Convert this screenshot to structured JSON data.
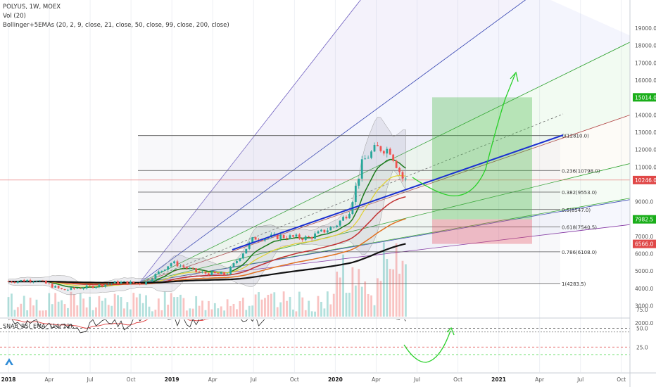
{
  "legend": {
    "symbol": "POLYUS, 1W, MOEX",
    "vol": "Vol (20)",
    "indicator": "Bollinger+5EMAs (20, 2, 9, close, 21, close, 50, close, 99, close, 200, close)"
  },
  "rsi_legend": "SNAB_RSI_EMA_ (14, 12)",
  "price_axis": {
    "ticks": [
      "19000.0",
      "18000.0",
      "17000.0",
      "16000.0",
      "14000.0",
      "13000.0",
      "12000.0",
      "11000.0",
      "9000.0",
      "8000.0",
      "7000.0",
      "6000.0",
      "5000.0",
      "4000.0",
      "3000.0",
      "2000.0"
    ],
    "badges": [
      {
        "label": "15014.0",
        "value": 15014,
        "color": "#1aae1a"
      },
      {
        "label": "10246.0",
        "value": 10246,
        "color": "#e04848"
      },
      {
        "label": "7982.5",
        "value": 7982.5,
        "color": "#1aae1a"
      },
      {
        "label": "6566.0",
        "value": 6566,
        "color": "#e04848"
      }
    ]
  },
  "rsi_axis": {
    "ticks": [
      "75.0",
      "50.0",
      "25.0"
    ]
  },
  "time_axis": {
    "labels": [
      "2018",
      "Apr",
      "Jul",
      "Oct",
      "2019",
      "Apr",
      "Jul",
      "Oct",
      "2020",
      "Apr",
      "Jul",
      "Oct",
      "2021",
      "Apr",
      "Jul",
      "Oct"
    ]
  },
  "chart_data": {
    "type": "line",
    "title": "POLYUS, 1W, MOEX",
    "ylim": [
      1300,
      19400
    ],
    "xlim": [
      "2018-01",
      "2021-11"
    ],
    "fibonacci": [
      {
        "label": "0(12810.0)",
        "value": 12810
      },
      {
        "label": "0.236(10798.0)",
        "value": 10798
      },
      {
        "label": "0.382(9553.0)",
        "value": 9553
      },
      {
        "label": "0.5(8547.0)",
        "value": 8547
      },
      {
        "label": "0.618(7540.5)",
        "value": 7540.5
      },
      {
        "label": "0.786(6108.0)",
        "value": 6108
      },
      {
        "label": "1(4283.5)",
        "value": 4283.5
      }
    ],
    "price_series": {
      "name": "close",
      "x": [
        "2018-01",
        "2018-03",
        "2018-05",
        "2018-07",
        "2018-09",
        "2018-11",
        "2019-01",
        "2019-03",
        "2019-05",
        "2019-07",
        "2019-09",
        "2019-11",
        "2020-01",
        "2020-02",
        "2020-03",
        "2020-04",
        "2020-05",
        "2020-06"
      ],
      "values": [
        4400,
        4500,
        3900,
        4100,
        4350,
        4300,
        5500,
        4900,
        4800,
        6900,
        7000,
        6900,
        7600,
        8400,
        11300,
        12100,
        12000,
        10246
      ]
    },
    "trade_box": {
      "entry": 7982.5,
      "target": 15014.0,
      "stop": 6566.0
    },
    "rsi": {
      "name": "SNAB_RSI_EMA_ (14, 12)",
      "levels": [
        75,
        50,
        25
      ],
      "values": [
        62,
        55,
        53,
        50,
        58,
        52,
        72,
        60,
        57,
        82,
        65,
        56,
        70,
        78,
        84,
        82,
        80,
        55
      ]
    },
    "volume_note": "Vol (20)"
  }
}
